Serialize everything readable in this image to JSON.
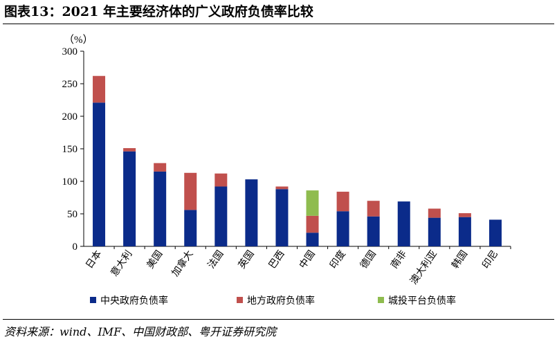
{
  "title": "图表13：2021 年主要经济体的广义政府负债率比较",
  "source": "资料来源：wind、IMF、中国财政部、粤开证券研究院",
  "colors": {
    "central": "#0b2b8a",
    "local": "#c0504d",
    "lgfv": "#8fbc4f"
  },
  "chart_data": {
    "type": "bar",
    "stacked": true,
    "unit": "（%）",
    "ylim": [
      0,
      300
    ],
    "yticks": [
      0,
      50,
      100,
      150,
      200,
      250,
      300
    ],
    "categories": [
      "日本",
      "意大利",
      "美国",
      "加拿大",
      "法国",
      "英国",
      "巴西",
      "中国",
      "印度",
      "德国",
      "南非",
      "澳大利亚",
      "韩国",
      "印尼"
    ],
    "series": [
      {
        "name": "中央政府负债率",
        "key": "central",
        "values": [
          221,
          146,
          115,
          56,
          92,
          103,
          88,
          21,
          54,
          46,
          69,
          44,
          45,
          41
        ]
      },
      {
        "name": "地方政府负债率",
        "key": "local",
        "values": [
          41,
          5,
          13,
          57,
          20,
          0,
          4,
          26,
          30,
          24,
          0,
          14,
          6,
          0
        ]
      },
      {
        "name": "城投平台负债率",
        "key": "lgfv",
        "values": [
          0,
          0,
          0,
          0,
          0,
          0,
          0,
          39,
          0,
          0,
          0,
          0,
          0,
          0
        ]
      }
    ],
    "legend_position": "bottom",
    "grid": false
  }
}
